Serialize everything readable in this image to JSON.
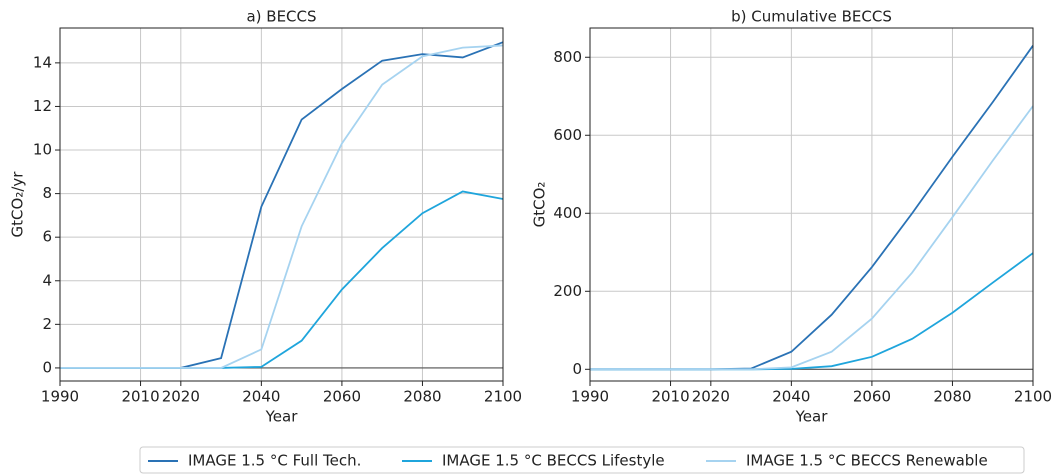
{
  "chart_data": [
    {
      "type": "line",
      "title": "a) BECCS",
      "x_label": "Year",
      "y_label": "GtCO₂/yr",
      "x": [
        1990,
        2000,
        2010,
        2020,
        2030,
        2040,
        2050,
        2060,
        2070,
        2080,
        2090,
        2100
      ],
      "series": [
        {
          "name": "IMAGE 1.5 °C Full Tech.",
          "color": "#2a72b5",
          "values": [
            0,
            0,
            0,
            0,
            0.45,
            7.4,
            11.4,
            12.8,
            14.1,
            14.4,
            14.25,
            14.95
          ]
        },
        {
          "name": "IMAGE 1.5 °C BECCS Lifestyle",
          "color": "#1fa5dc",
          "values": [
            0,
            0,
            0,
            0,
            0,
            0.05,
            1.25,
            3.6,
            5.5,
            7.1,
            8.1,
            7.75
          ]
        },
        {
          "name": "IMAGE 1.5 °C BECCS Renewable",
          "color": "#a6d3f0",
          "values": [
            0,
            0,
            0,
            0,
            0,
            0.85,
            6.5,
            10.3,
            13.0,
            14.3,
            14.7,
            14.8
          ]
        }
      ],
      "xlim": [
        1990,
        2100
      ],
      "ylim": [
        -0.6,
        15.6
      ],
      "xticks": [
        1990,
        2010,
        2020,
        2040,
        2060,
        2080,
        2100
      ],
      "yticks": [
        0,
        2,
        4,
        6,
        8,
        10,
        12,
        14
      ],
      "grid": true,
      "zero_line": true
    },
    {
      "type": "line",
      "title": "b) Cumulative BECCS",
      "x_label": "Year",
      "y_label": "GtCO₂",
      "x": [
        1990,
        2000,
        2010,
        2020,
        2030,
        2040,
        2050,
        2060,
        2070,
        2080,
        2090,
        2100
      ],
      "series": [
        {
          "color": "#2a72b5",
          "values": [
            0,
            0,
            0,
            0,
            2,
            45,
            140,
            262,
            400,
            545,
            685,
            830
          ]
        },
        {
          "color": "#1fa5dc",
          "values": [
            0,
            0,
            0,
            0,
            0,
            1,
            8,
            32,
            78,
            145,
            222,
            298
          ]
        },
        {
          "color": "#a6d3f0",
          "values": [
            0,
            0,
            0,
            0,
            0,
            5,
            45,
            130,
            248,
            390,
            535,
            675
          ]
        }
      ],
      "xlim": [
        1990,
        2100
      ],
      "ylim": [
        -30,
        875
      ],
      "xticks": [
        1990,
        2010,
        2020,
        2040,
        2060,
        2080,
        2100
      ],
      "yticks": [
        0,
        200,
        400,
        600,
        800
      ],
      "grid": true,
      "zero_line": true
    }
  ],
  "legend_position": "bottom"
}
